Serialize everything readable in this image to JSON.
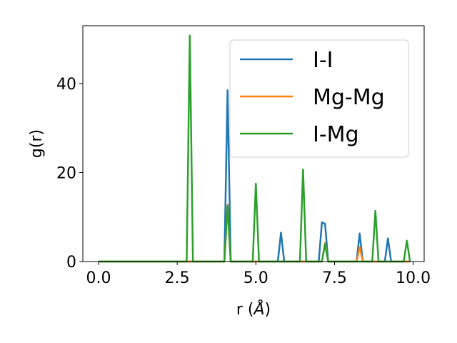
{
  "chart_data": {
    "type": "line",
    "xlabel": "r (",
    "xlabel_unit": "Å",
    "xlabel_close": ")",
    "ylabel": "g(r)",
    "xlim": [
      -0.5,
      10.35
    ],
    "ylim": [
      0,
      53
    ],
    "xticks": [
      0.0,
      2.5,
      5.0,
      7.5,
      10.0
    ],
    "xtick_labels": [
      "0.0",
      "2.5",
      "5.0",
      "7.5",
      "10.0"
    ],
    "yticks": [
      0,
      20,
      40
    ],
    "ytick_labels": [
      "0",
      "20",
      "40"
    ],
    "grid": false,
    "legend_position": "upper right",
    "series": [
      {
        "name": "I-I",
        "color": "#1f77b4",
        "x": [
          0.0,
          4.0,
          4.1,
          4.2,
          5.7,
          5.8,
          5.9,
          7.0,
          7.1,
          7.2,
          7.3,
          8.2,
          8.3,
          8.4,
          9.1,
          9.2,
          9.3,
          9.9
        ],
        "y": [
          0,
          0,
          38.5,
          0,
          0,
          6.5,
          0,
          0,
          8.8,
          8.5,
          0,
          0,
          6.3,
          0,
          0,
          5.2,
          0,
          0
        ]
      },
      {
        "name": "Mg-Mg",
        "color": "#ff7f0e",
        "x": [
          0.0,
          4.0,
          4.1,
          4.2,
          7.1,
          7.2,
          7.3,
          8.2,
          8.3,
          8.4,
          9.9
        ],
        "y": [
          0,
          0,
          12.8,
          0,
          0,
          4.2,
          0,
          0,
          3.3,
          0,
          0
        ]
      },
      {
        "name": "I-Mg",
        "color": "#2ca02c",
        "x": [
          0.0,
          2.8,
          2.9,
          3.0,
          4.0,
          4.1,
          4.2,
          4.9,
          5.0,
          5.1,
          6.4,
          6.5,
          6.6,
          7.1,
          7.2,
          7.3,
          8.7,
          8.8,
          8.9,
          9.7,
          9.8,
          9.9
        ],
        "y": [
          0,
          0,
          50.8,
          0,
          0,
          12.5,
          0,
          0,
          17.5,
          0,
          0,
          20.7,
          0,
          0,
          3.9,
          0,
          0,
          11.4,
          0,
          0,
          4.7,
          0
        ]
      }
    ]
  }
}
